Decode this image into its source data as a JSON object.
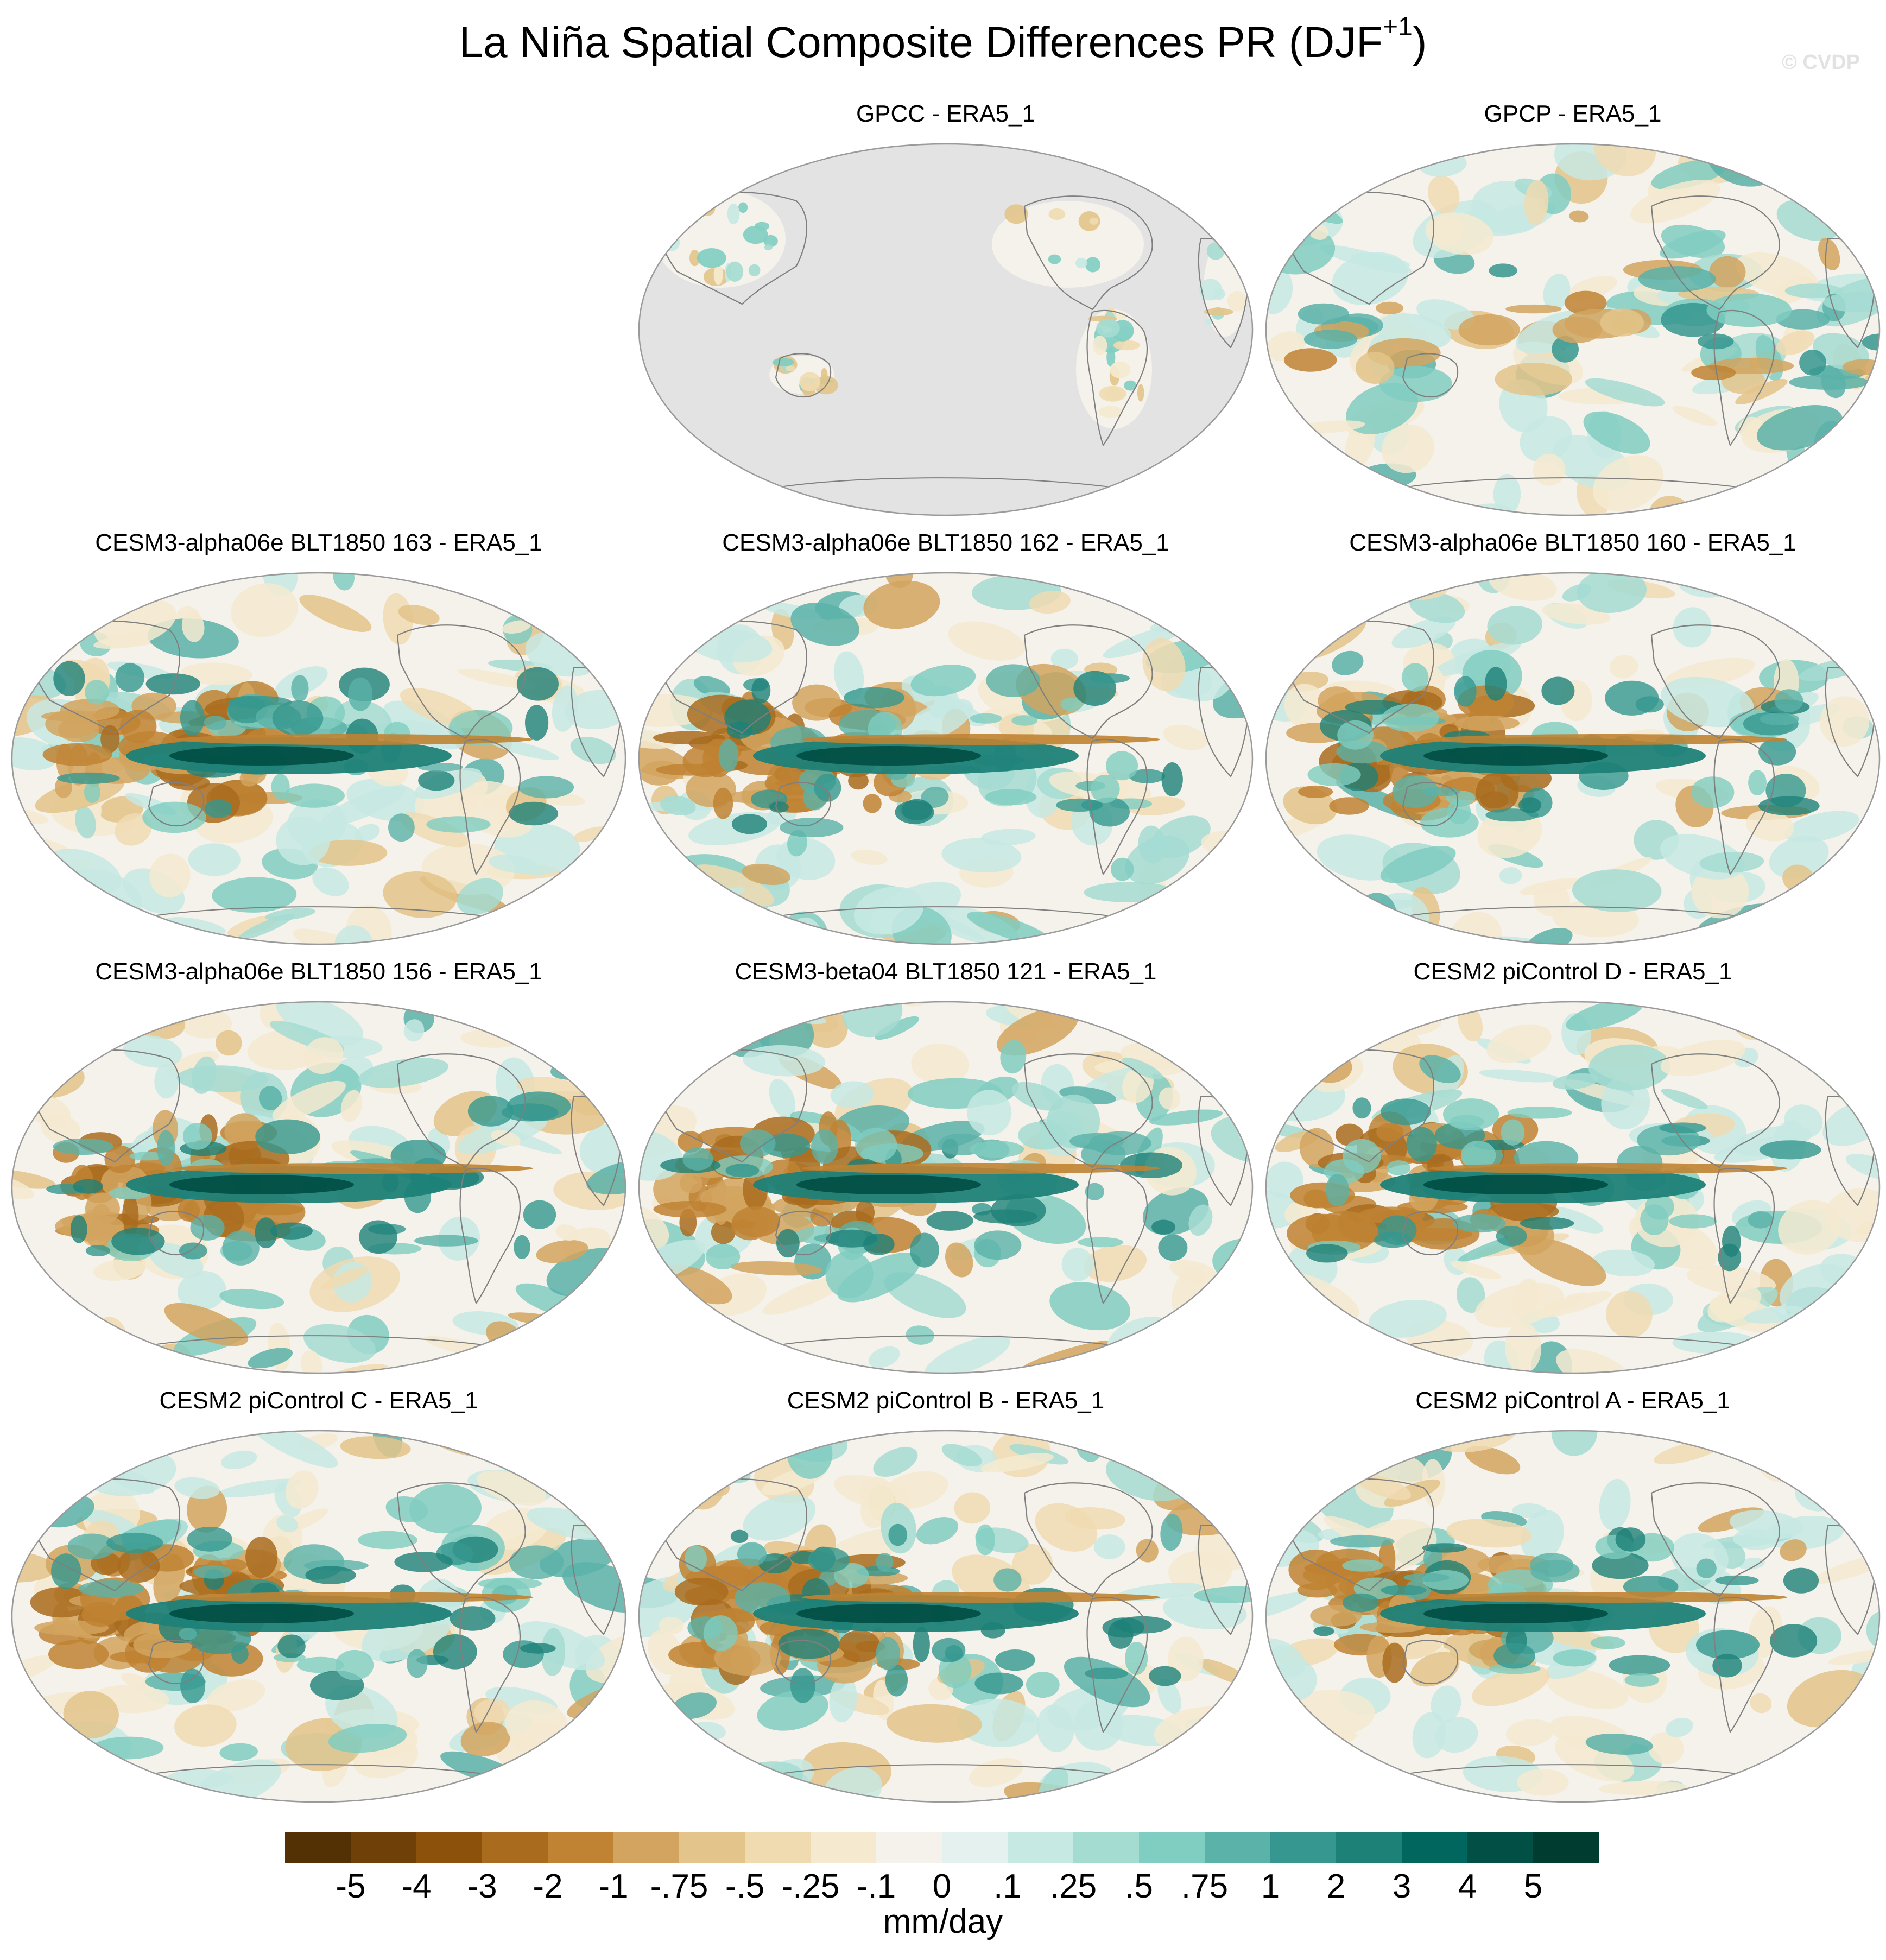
{
  "title": "La Niña Spatial Composite Differences PR (DJF",
  "title_superscript": "+1",
  "title_close": ")",
  "watermark": "© CVDP",
  "panels": [
    {
      "title": "GPCC - ERA5_1",
      "type": "land_only"
    },
    {
      "title": "GPCP - ERA5_1",
      "type": "observation"
    },
    {
      "title": "CESM3-alpha06e BLT1850 163 - ERA5_1",
      "type": "model"
    },
    {
      "title": "CESM3-alpha06e BLT1850 162 - ERA5_1",
      "type": "model"
    },
    {
      "title": "CESM3-alpha06e BLT1850 160 - ERA5_1",
      "type": "model"
    },
    {
      "title": "CESM3-alpha06e BLT1850 156 - ERA5_1",
      "type": "model"
    },
    {
      "title": "CESM3-beta04 BLT1850 121 - ERA5_1",
      "type": "model"
    },
    {
      "title": "CESM2 piControl D - ERA5_1",
      "type": "model"
    },
    {
      "title": "CESM2 piControl C - ERA5_1",
      "type": "model"
    },
    {
      "title": "CESM2 piControl B - ERA5_1",
      "type": "model"
    },
    {
      "title": "CESM2 piControl A - ERA5_1",
      "type": "model"
    }
  ],
  "colorbar": {
    "colors": [
      "#543005",
      "#6f4109",
      "#8c510a",
      "#a96c1f",
      "#c08333",
      "#d2a45f",
      "#e3c48a",
      "#f0dbb1",
      "#f5ead0",
      "#f5f2ec",
      "#e4f1ef",
      "#c7e9e3",
      "#a4dcd2",
      "#80cdc1",
      "#5ab2a8",
      "#35978f",
      "#1e8178",
      "#01665e",
      "#024f46",
      "#003c30"
    ],
    "tick_labels": [
      "-5",
      "-4",
      "-3",
      "-2",
      "-1",
      "-.75",
      "-.5",
      "-.25",
      "-.1",
      "0",
      ".1",
      ".25",
      ".5",
      ".75",
      "1",
      "2",
      "3",
      "4",
      "5"
    ],
    "units": "mm/day"
  }
}
